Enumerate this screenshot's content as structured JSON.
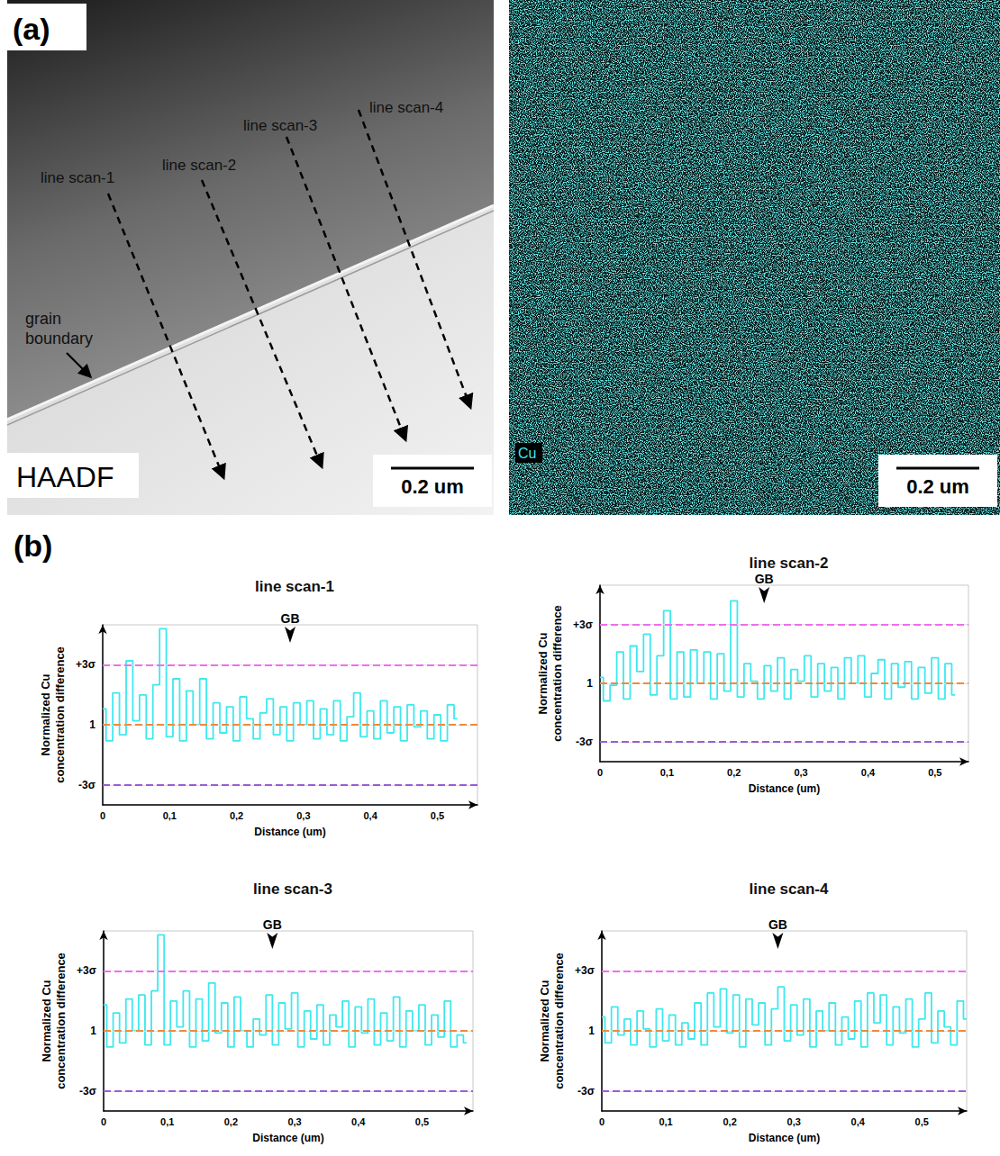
{
  "panel_a": {
    "label": "(a)",
    "haadf_image": {
      "label": "HAADF",
      "scale_bar": "0.2 um",
      "grain_boundary": "grain boundary",
      "line_scans": [
        "line scan-1",
        "line scan-2",
        "line scan-3",
        "line scan-4"
      ]
    },
    "cu_map": {
      "label": "Cu",
      "scale_bar": "0.2 um"
    }
  },
  "panel_b_label": "(b)",
  "chart_data": [
    {
      "type": "line",
      "title": "line scan-1",
      "x_label": "Distance (um)",
      "y_label": "Normalized Cu concentration difference",
      "color": "#3ee8f0",
      "grid": true,
      "xlim": [
        0,
        0.56
      ],
      "xticks": [
        0,
        {
          "value": 0.1,
          "label": "0,1"
        },
        {
          "value": 0.2,
          "label": "0,2"
        },
        {
          "value": 0.3,
          "label": "0,3"
        },
        {
          "value": 0.4,
          "label": "0,4"
        },
        {
          "value": 0.5,
          "label": "0,5"
        }
      ],
      "ylim": [
        -3,
        6
      ],
      "yticks": [
        {
          "value": -2,
          "label": "-3σ"
        },
        1,
        {
          "value": 4,
          "label": "+3σ"
        }
      ],
      "annotations": [
        {
          "x": 0.28,
          "text": "GB"
        }
      ],
      "x": [
        0,
        0.01,
        0.02,
        0.03,
        0.04,
        0.05,
        0.06,
        0.07,
        0.08,
        0.09,
        0.1,
        0.11,
        0.12,
        0.13,
        0.14,
        0.15,
        0.16,
        0.17,
        0.18,
        0.19,
        0.2,
        0.21,
        0.22,
        0.23,
        0.24,
        0.25,
        0.26,
        0.27,
        0.28,
        0.29,
        0.3,
        0.31,
        0.32,
        0.33,
        0.34,
        0.35,
        0.36,
        0.37,
        0.38,
        0.39,
        0.4,
        0.41,
        0.42,
        0.43,
        0.44,
        0.45,
        0.46,
        0.47,
        0.48,
        0.49,
        0.5,
        0.51,
        0.52,
        0.53
      ],
      "values": [
        1.8,
        0.2,
        2.6,
        0.5,
        4.2,
        1.2,
        2.5,
        0.3,
        3.0,
        5.8,
        0.4,
        3.3,
        0.2,
        2.7,
        1.0,
        3.3,
        0.3,
        2.1,
        0.6,
        1.9,
        0.2,
        2.4,
        1.3,
        0.3,
        1.6,
        2.3,
        0.5,
        1.9,
        0.2,
        2.1,
        1.0,
        2.2,
        0.3,
        1.8,
        0.5,
        2.2,
        0.2,
        1.4,
        2.6,
        0.4,
        1.7,
        0.3,
        2.2,
        0.6,
        1.9,
        0.2,
        2.0,
        0.9,
        1.7,
        0.3,
        1.5,
        0.2,
        2.0,
        1.3
      ]
    },
    {
      "type": "line",
      "title": "line scan-2",
      "x_label": "Distance (um)",
      "y_label": "Normalized Cu concentration difference",
      "color": "#3ee8f0",
      "grid": true,
      "xlim": [
        0,
        0.55
      ],
      "xticks": [
        0,
        {
          "value": 0.1,
          "label": "0,1"
        },
        {
          "value": 0.2,
          "label": "0,2"
        },
        {
          "value": 0.3,
          "label": "0,3"
        },
        {
          "value": 0.4,
          "label": "0,4"
        },
        {
          "value": 0.5,
          "label": "0,5"
        }
      ],
      "ylim": [
        -3,
        6
      ],
      "yticks": [
        {
          "value": -2,
          "label": "-3σ"
        },
        1,
        {
          "value": 4,
          "label": "+3σ"
        }
      ],
      "annotations": [
        {
          "x": 0.245,
          "text": "GB"
        }
      ],
      "x": [
        0,
        0.01,
        0.02,
        0.03,
        0.04,
        0.05,
        0.06,
        0.07,
        0.08,
        0.09,
        0.1,
        0.11,
        0.12,
        0.13,
        0.14,
        0.15,
        0.16,
        0.17,
        0.18,
        0.19,
        0.2,
        0.21,
        0.22,
        0.23,
        0.24,
        0.25,
        0.26,
        0.27,
        0.28,
        0.29,
        0.3,
        0.31,
        0.32,
        0.33,
        0.34,
        0.35,
        0.36,
        0.37,
        0.38,
        0.39,
        0.4,
        0.41,
        0.42,
        0.43,
        0.44,
        0.45,
        0.46,
        0.47,
        0.48,
        0.49,
        0.5,
        0.51,
        0.52,
        0.53
      ],
      "values": [
        1.3,
        0.1,
        0.9,
        2.6,
        0.2,
        2.9,
        1.6,
        3.5,
        0.4,
        2.4,
        4.7,
        0.2,
        2.6,
        0.3,
        2.7,
        1.0,
        2.6,
        0.2,
        2.5,
        0.6,
        5.2,
        0.3,
        2.0,
        1.1,
        0.2,
        1.9,
        0.6,
        2.3,
        0.2,
        1.7,
        1.1,
        2.4,
        0.3,
        2.0,
        0.6,
        1.8,
        0.2,
        2.3,
        1.0,
        2.4,
        0.3,
        1.5,
        2.2,
        0.2,
        2.0,
        0.8,
        2.1,
        0.2,
        1.8,
        0.5,
        2.3,
        0.2,
        2.0,
        0.4
      ]
    },
    {
      "type": "line",
      "title": "line scan-3",
      "x_label": "Distance (um)",
      "y_label": "Normalized Cu concentration difference",
      "color": "#3ee8f0",
      "grid": true,
      "xlim": [
        0,
        0.58
      ],
      "xticks": [
        0,
        {
          "value": 0.1,
          "label": "0,1"
        },
        {
          "value": 0.2,
          "label": "0,2"
        },
        {
          "value": 0.3,
          "label": "0,3"
        },
        {
          "value": 0.4,
          "label": "0,4"
        },
        {
          "value": 0.5,
          "label": "0,5"
        }
      ],
      "ylim": [
        -3,
        6
      ],
      "yticks": [
        {
          "value": -2,
          "label": "-3σ"
        },
        1,
        {
          "value": 4,
          "label": "+3σ"
        }
      ],
      "annotations": [
        {
          "x": 0.265,
          "text": "GB"
        }
      ],
      "x": [
        0,
        0.01,
        0.02,
        0.03,
        0.04,
        0.05,
        0.06,
        0.07,
        0.08,
        0.09,
        0.1,
        0.11,
        0.12,
        0.13,
        0.14,
        0.15,
        0.16,
        0.17,
        0.18,
        0.19,
        0.2,
        0.21,
        0.22,
        0.23,
        0.24,
        0.25,
        0.26,
        0.27,
        0.28,
        0.29,
        0.3,
        0.31,
        0.32,
        0.33,
        0.34,
        0.35,
        0.36,
        0.37,
        0.38,
        0.39,
        0.4,
        0.41,
        0.42,
        0.43,
        0.44,
        0.45,
        0.46,
        0.47,
        0.48,
        0.49,
        0.5,
        0.51,
        0.52,
        0.53,
        0.54,
        0.55,
        0.56,
        0.57
      ],
      "values": [
        2.3,
        0.2,
        1.9,
        0.4,
        2.6,
        1.0,
        2.8,
        0.3,
        3.0,
        5.8,
        0.3,
        2.5,
        1.2,
        3.0,
        0.2,
        2.6,
        0.5,
        3.4,
        0.9,
        2.4,
        0.2,
        2.7,
        1.0,
        0.2,
        1.6,
        0.8,
        2.8,
        0.3,
        2.4,
        1.1,
        2.9,
        0.2,
        2.0,
        0.6,
        2.3,
        0.3,
        1.8,
        1.2,
        2.5,
        0.2,
        2.2,
        0.9,
        2.6,
        0.3,
        1.9,
        0.5,
        2.7,
        0.2,
        2.0,
        1.0,
        2.3,
        0.3,
        1.8,
        0.7,
        2.5,
        0.2,
        0.8,
        0.4
      ]
    },
    {
      "type": "line",
      "title": "line scan-4",
      "x_label": "Distance (um)",
      "y_label": "Normalized Cu concentration difference",
      "color": "#3ee8f0",
      "grid": true,
      "xlim": [
        0,
        0.57
      ],
      "xticks": [
        0,
        {
          "value": 0.1,
          "label": "0,1"
        },
        {
          "value": 0.2,
          "label": "0,2"
        },
        {
          "value": 0.3,
          "label": "0,3"
        },
        {
          "value": 0.4,
          "label": "0,4"
        },
        {
          "value": 0.5,
          "label": "0,5"
        }
      ],
      "ylim": [
        -3,
        6
      ],
      "yticks": [
        {
          "value": -2,
          "label": "-3σ"
        },
        1,
        {
          "value": 4,
          "label": "+3σ"
        }
      ],
      "annotations": [
        {
          "x": 0.275,
          "text": "GB"
        }
      ],
      "x": [
        0,
        0.01,
        0.02,
        0.03,
        0.04,
        0.05,
        0.06,
        0.07,
        0.08,
        0.09,
        0.1,
        0.11,
        0.12,
        0.13,
        0.14,
        0.15,
        0.16,
        0.17,
        0.18,
        0.19,
        0.2,
        0.21,
        0.22,
        0.23,
        0.24,
        0.25,
        0.26,
        0.27,
        0.28,
        0.29,
        0.3,
        0.31,
        0.32,
        0.33,
        0.34,
        0.35,
        0.36,
        0.37,
        0.38,
        0.39,
        0.4,
        0.41,
        0.42,
        0.43,
        0.44,
        0.45,
        0.46,
        0.47,
        0.48,
        0.49,
        0.5,
        0.51,
        0.52,
        0.53,
        0.54,
        0.55,
        0.56,
        0.57
      ],
      "values": [
        1.7,
        0.4,
        2.2,
        0.8,
        1.6,
        0.3,
        2.0,
        1.1,
        0.2,
        2.1,
        0.5,
        1.8,
        0.3,
        1.4,
        0.6,
        2.4,
        0.3,
        2.9,
        1.2,
        3.1,
        0.9,
        2.8,
        0.2,
        2.6,
        1.3,
        2.4,
        0.3,
        2.1,
        3.2,
        0.5,
        2.3,
        0.8,
        2.6,
        0.2,
        2.0,
        1.0,
        2.4,
        0.3,
        1.7,
        0.6,
        2.5,
        0.2,
        2.9,
        1.4,
        2.8,
        0.3,
        2.2,
        0.9,
        2.6,
        0.2,
        1.6,
        2.9,
        0.4,
        2.0,
        1.2,
        0.3,
        2.5,
        1.6
      ]
    }
  ]
}
